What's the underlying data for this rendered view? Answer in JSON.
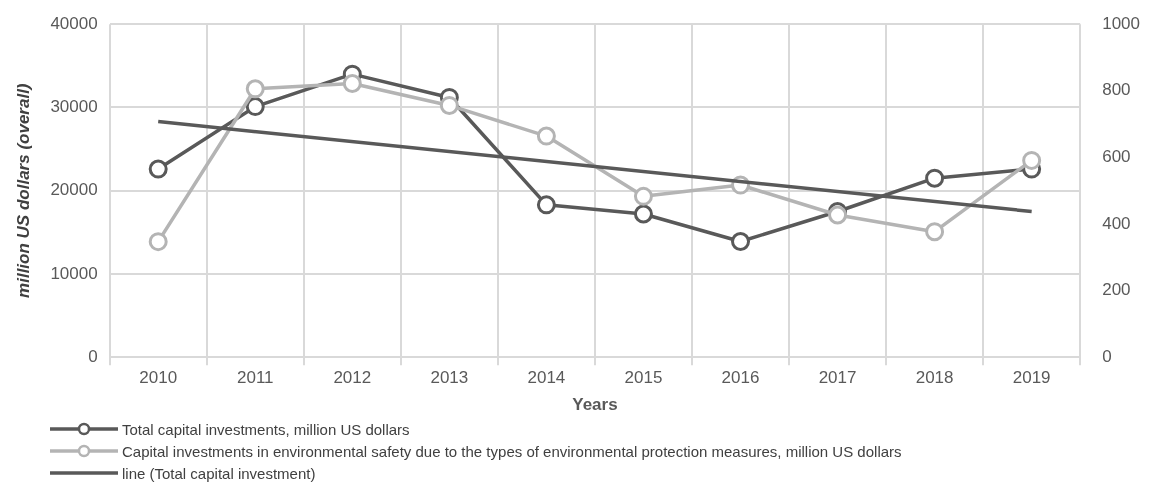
{
  "chart_data": {
    "type": "line",
    "xlabel": "Years",
    "ylabel": "million US dollars (overall)",
    "categories": [
      "2010",
      "2011",
      "2012",
      "2013",
      "2014",
      "2015",
      "2016",
      "2017",
      "2018",
      "2019"
    ],
    "series": [
      {
        "name": "Total capital investments, million US dollars",
        "color": "#595959",
        "values": [
          22600,
          30100,
          34000,
          31200,
          18300,
          17200,
          13900,
          17500,
          21500,
          22600
        ]
      },
      {
        "name": "Capital investments in environmental safety due to the types of environmental protection measures, million US dollars",
        "color": "#b4b4b4",
        "axis": "y2",
        "values": [
          347,
          806,
          822,
          756,
          664,
          483,
          517,
          427,
          377,
          591
        ]
      },
      {
        "name": "line (Total capital investment)",
        "color": "#595959",
        "type": "line",
        "marker": "none",
        "values": [
          28300,
          null,
          null,
          null,
          null,
          null,
          null,
          null,
          null,
          17500
        ]
      }
    ],
    "ylim": [
      0,
      40000
    ],
    "yticks": [
      0,
      10000,
      20000,
      30000,
      40000
    ],
    "y2lim": [
      0,
      1000
    ],
    "y2ticks": [
      0,
      200,
      400,
      600,
      800,
      1000
    ],
    "grid": true,
    "legend": "bottom left",
    "marker": "circle",
    "line_style": "solid"
  }
}
